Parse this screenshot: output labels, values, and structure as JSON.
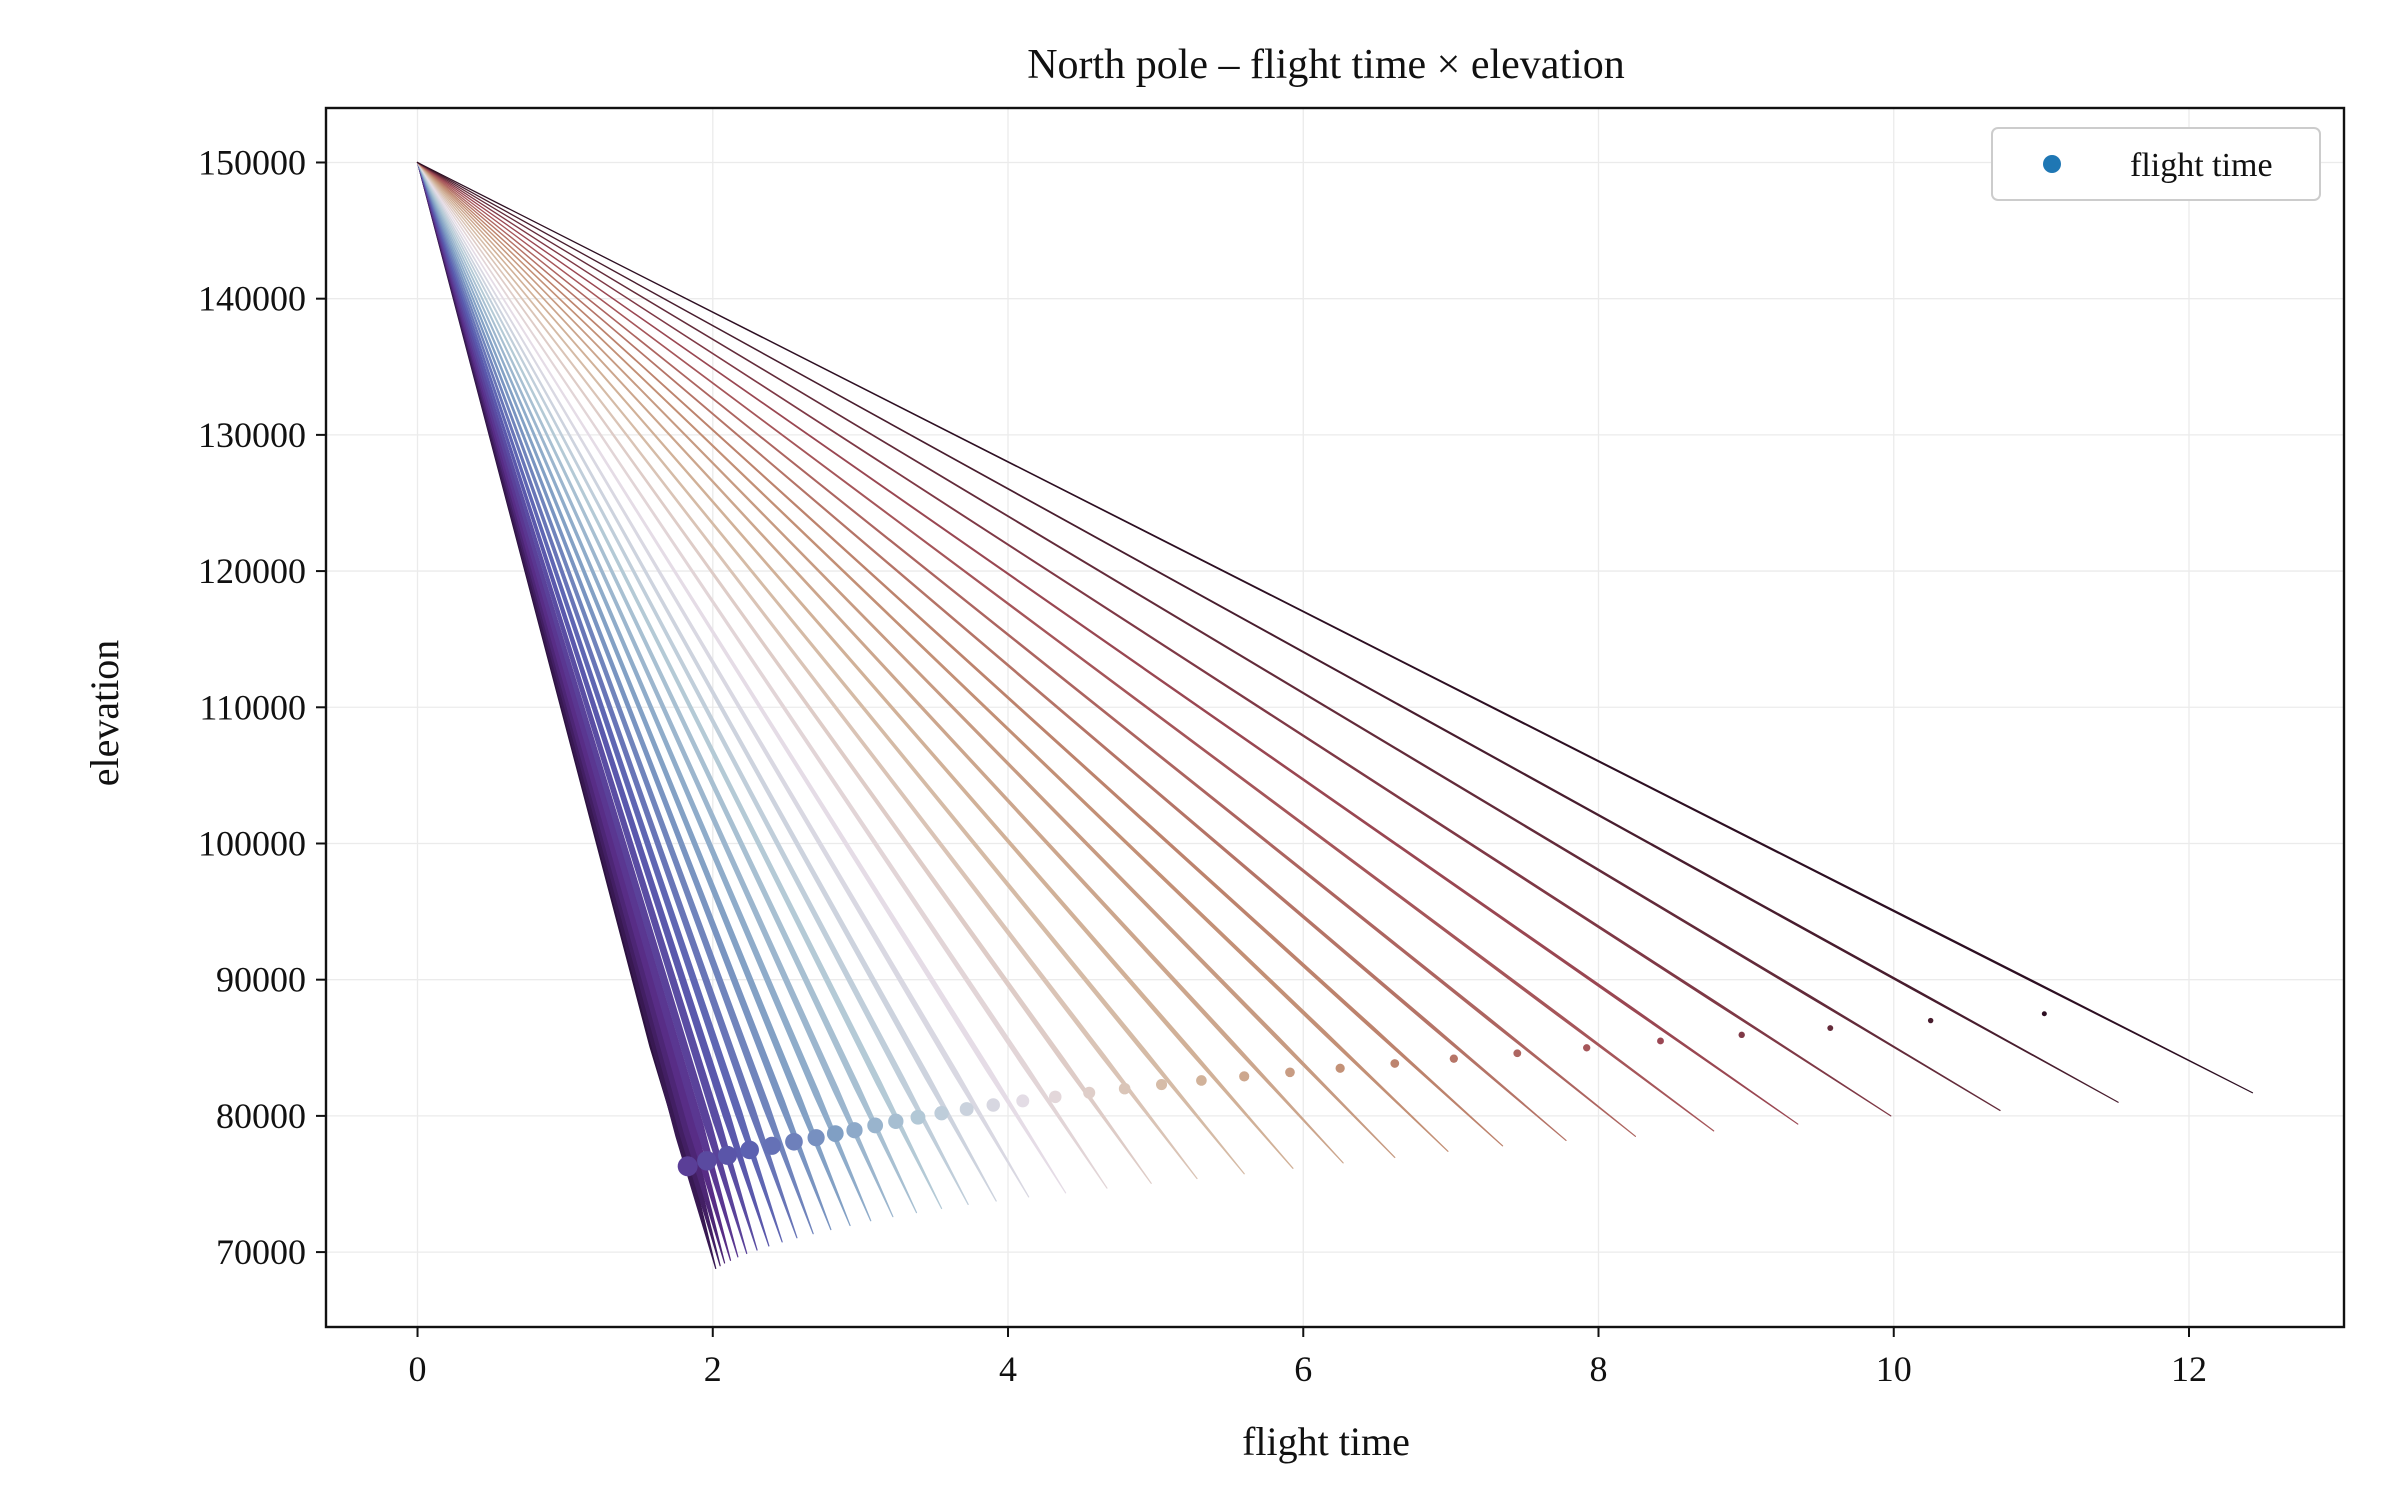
{
  "chart_data": {
    "type": "line",
    "title": "North pole – flight time × elevation",
    "xlabel": "flight time",
    "ylabel": "elevation",
    "xlim": [
      -0.62,
      13.05
    ],
    "ylim": [
      64500,
      154000
    ],
    "xticks": [
      0,
      2,
      4,
      6,
      8,
      10,
      12
    ],
    "yticks": [
      70000,
      80000,
      90000,
      100000,
      110000,
      120000,
      130000,
      140000,
      150000
    ],
    "grid": true,
    "legend": {
      "placement": "top-right",
      "entries": [
        {
          "label": "flight time",
          "color": "#1f77b4"
        }
      ]
    },
    "start_point": {
      "x": 0,
      "y": 150000
    },
    "colormap": [
      "#2d1240",
      "#5a2e8a",
      "#5a5db0",
      "#7f9ec4",
      "#b3c9d6",
      "#e6dde6",
      "#d4b8a0",
      "#c08a70",
      "#a04a55",
      "#2d0f22"
    ],
    "series": [
      {
        "end_x": 1.82,
        "end_y": 76300
      },
      {
        "end_x": 2.02,
        "end_y": 68800
      },
      {
        "end_x": 2.05,
        "end_y": 69000
      },
      {
        "end_x": 2.08,
        "end_y": 69200
      },
      {
        "end_x": 2.12,
        "end_y": 69400
      },
      {
        "end_x": 2.17,
        "end_y": 69650
      },
      {
        "end_x": 2.23,
        "end_y": 69900
      },
      {
        "end_x": 2.3,
        "end_y": 70150
      },
      {
        "end_x": 2.38,
        "end_y": 70450
      },
      {
        "end_x": 2.47,
        "end_y": 70750
      },
      {
        "end_x": 2.57,
        "end_y": 71050
      },
      {
        "end_x": 2.68,
        "end_y": 71350
      },
      {
        "end_x": 2.8,
        "end_y": 71650
      },
      {
        "end_x": 2.93,
        "end_y": 71950
      },
      {
        "end_x": 3.07,
        "end_y": 72300
      },
      {
        "end_x": 3.22,
        "end_y": 72600
      },
      {
        "end_x": 3.38,
        "end_y": 72900
      },
      {
        "end_x": 3.55,
        "end_y": 73200
      },
      {
        "end_x": 3.73,
        "end_y": 73500
      },
      {
        "end_x": 3.92,
        "end_y": 73750
      },
      {
        "end_x": 4.14,
        "end_y": 74050
      },
      {
        "end_x": 4.39,
        "end_y": 74350
      },
      {
        "end_x": 4.67,
        "end_y": 74700
      },
      {
        "end_x": 4.97,
        "end_y": 75050
      },
      {
        "end_x": 5.28,
        "end_y": 75400
      },
      {
        "end_x": 5.6,
        "end_y": 75750
      },
      {
        "end_x": 5.93,
        "end_y": 76150
      },
      {
        "end_x": 6.27,
        "end_y": 76550
      },
      {
        "end_x": 6.62,
        "end_y": 76950
      },
      {
        "end_x": 6.98,
        "end_y": 77400
      },
      {
        "end_x": 7.35,
        "end_y": 77800
      },
      {
        "end_x": 7.78,
        "end_y": 78200
      },
      {
        "end_x": 8.25,
        "end_y": 78500
      },
      {
        "end_x": 8.78,
        "end_y": 78900
      },
      {
        "end_x": 9.35,
        "end_y": 79400
      },
      {
        "end_x": 9.98,
        "end_y": 80000
      },
      {
        "end_x": 10.72,
        "end_y": 80400
      },
      {
        "end_x": 11.52,
        "end_y": 81000
      },
      {
        "end_x": 12.43,
        "end_y": 81700
      }
    ],
    "flight_time_points": [
      {
        "x": 1.83,
        "y": 76300
      },
      {
        "x": 1.96,
        "y": 76700
      },
      {
        "x": 2.1,
        "y": 77100
      },
      {
        "x": 2.25,
        "y": 77500
      },
      {
        "x": 2.4,
        "y": 77800
      },
      {
        "x": 2.55,
        "y": 78100
      },
      {
        "x": 2.7,
        "y": 78400
      },
      {
        "x": 2.83,
        "y": 78700
      },
      {
        "x": 2.96,
        "y": 78950
      },
      {
        "x": 3.1,
        "y": 79300
      },
      {
        "x": 3.24,
        "y": 79600
      },
      {
        "x": 3.39,
        "y": 79900
      },
      {
        "x": 3.55,
        "y": 80200
      },
      {
        "x": 3.72,
        "y": 80500
      },
      {
        "x": 3.9,
        "y": 80800
      },
      {
        "x": 4.1,
        "y": 81100
      },
      {
        "x": 4.32,
        "y": 81400
      },
      {
        "x": 4.55,
        "y": 81700
      },
      {
        "x": 4.79,
        "y": 82000
      },
      {
        "x": 5.04,
        "y": 82300
      },
      {
        "x": 5.31,
        "y": 82600
      },
      {
        "x": 5.6,
        "y": 82900
      },
      {
        "x": 5.91,
        "y": 83200
      },
      {
        "x": 6.25,
        "y": 83500
      },
      {
        "x": 6.62,
        "y": 83850
      },
      {
        "x": 7.02,
        "y": 84200
      },
      {
        "x": 7.45,
        "y": 84600
      },
      {
        "x": 7.92,
        "y": 85000
      },
      {
        "x": 8.42,
        "y": 85500
      },
      {
        "x": 8.97,
        "y": 85950
      },
      {
        "x": 9.57,
        "y": 86450
      },
      {
        "x": 10.25,
        "y": 87000
      },
      {
        "x": 11.02,
        "y": 87500
      }
    ]
  }
}
